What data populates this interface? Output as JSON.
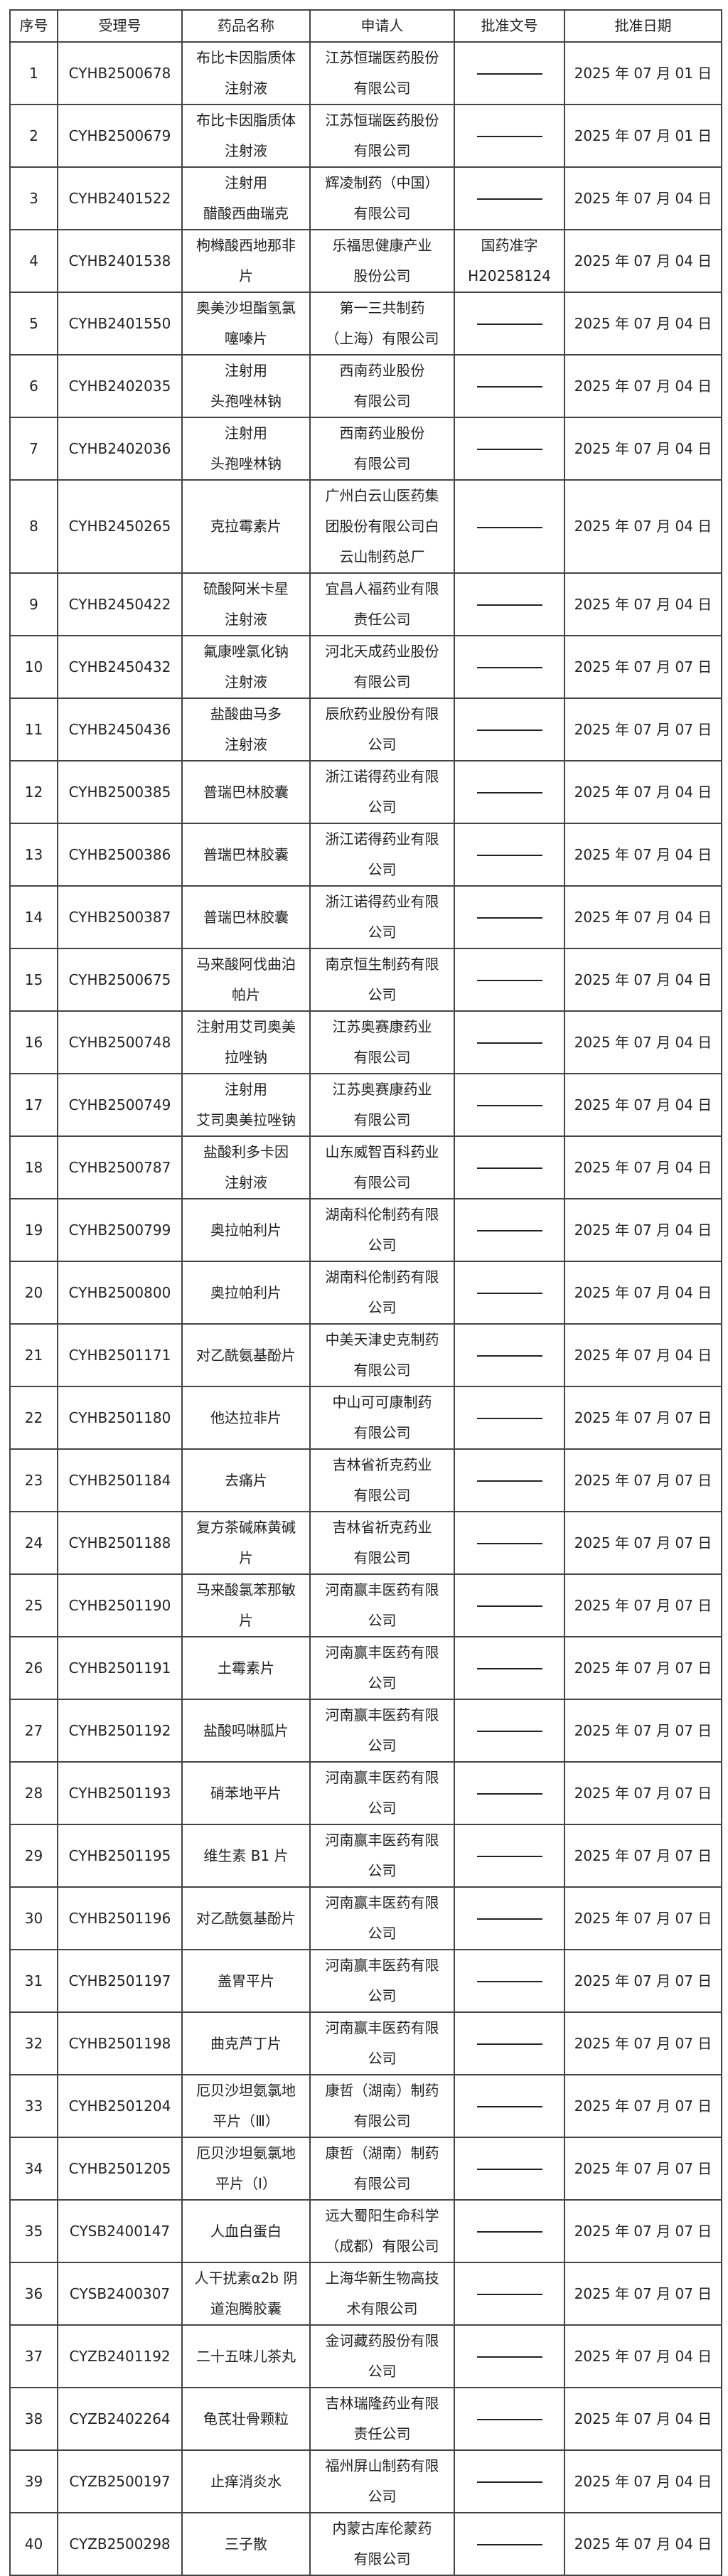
{
  "table": {
    "headers": [
      "序号",
      "受理号",
      "药品名称",
      "申请人",
      "批准文号",
      "批准日期"
    ],
    "rows": [
      {
        "no": "1",
        "id": "CYHB2500678",
        "name": "布比卡因脂质体\n注射液",
        "applicant": "江苏恒瑞医药股份\n有限公司",
        "approval": "",
        "date": "2025 年 07 月 01 日"
      },
      {
        "no": "2",
        "id": "CYHB2500679",
        "name": "布比卡因脂质体\n注射液",
        "applicant": "江苏恒瑞医药股份\n有限公司",
        "approval": "",
        "date": "2025 年 07 月 01 日"
      },
      {
        "no": "3",
        "id": "CYHB2401522",
        "name": "注射用\n醋酸西曲瑞克",
        "applicant": "辉凌制药（中国）\n有限公司",
        "approval": "",
        "date": "2025 年 07 月 04 日"
      },
      {
        "no": "4",
        "id": "CYHB2401538",
        "name": "枸橼酸西地那非\n片",
        "applicant": "乐福思健康产业\n股份公司",
        "approval": "国药准字\nH20258124",
        "date": "2025 年 07 月 04 日"
      },
      {
        "no": "5",
        "id": "CYHB2401550",
        "name": "奥美沙坦酯氢氯\n噻嗪片",
        "applicant": "第一三共制药\n（上海）有限公司",
        "approval": "",
        "date": "2025 年 07 月 04 日"
      },
      {
        "no": "6",
        "id": "CYHB2402035",
        "name": "注射用\n头孢唑林钠",
        "applicant": "西南药业股份\n有限公司",
        "approval": "",
        "date": "2025 年 07 月 04 日"
      },
      {
        "no": "7",
        "id": "CYHB2402036",
        "name": "注射用\n头孢唑林钠",
        "applicant": "西南药业股份\n有限公司",
        "approval": "",
        "date": "2025 年 07 月 04 日"
      },
      {
        "no": "8",
        "id": "CYHB2450265",
        "name": "克拉霉素片",
        "applicant": "广州白云山医药集\n团股份有限公司白\n云山制药总厂",
        "approval": "",
        "date": "2025 年 07 月 04 日"
      },
      {
        "no": "9",
        "id": "CYHB2450422",
        "name": "硫酸阿米卡星\n注射液",
        "applicant": "宜昌人福药业有限\n责任公司",
        "approval": "",
        "date": "2025 年 07 月 04 日"
      },
      {
        "no": "10",
        "id": "CYHB2450432",
        "name": "氟康唑氯化钠\n注射液",
        "applicant": "河北天成药业股份\n有限公司",
        "approval": "",
        "date": "2025 年 07 月 07 日"
      },
      {
        "no": "11",
        "id": "CYHB2450436",
        "name": "盐酸曲马多\n注射液",
        "applicant": "辰欣药业股份有限\n公司",
        "approval": "",
        "date": "2025 年 07 月 07 日"
      },
      {
        "no": "12",
        "id": "CYHB2500385",
        "name": "普瑞巴林胶囊",
        "applicant": "浙江诺得药业有限\n公司",
        "approval": "",
        "date": "2025 年 07 月 04 日"
      },
      {
        "no": "13",
        "id": "CYHB2500386",
        "name": "普瑞巴林胶囊",
        "applicant": "浙江诺得药业有限\n公司",
        "approval": "",
        "date": "2025 年 07 月 04 日"
      },
      {
        "no": "14",
        "id": "CYHB2500387",
        "name": "普瑞巴林胶囊",
        "applicant": "浙江诺得药业有限\n公司",
        "approval": "",
        "date": "2025 年 07 月 04 日"
      },
      {
        "no": "15",
        "id": "CYHB2500675",
        "name": "马来酸阿伐曲泊\n帕片",
        "applicant": "南京恒生制药有限\n公司",
        "approval": "",
        "date": "2025 年 07 月 04 日"
      },
      {
        "no": "16",
        "id": "CYHB2500748",
        "name": "注射用艾司奥美\n拉唑钠",
        "applicant": "江苏奥赛康药业\n有限公司",
        "approval": "",
        "date": "2025 年 07 月 04 日"
      },
      {
        "no": "17",
        "id": "CYHB2500749",
        "name": "注射用\n艾司奥美拉唑钠",
        "applicant": "江苏奥赛康药业\n有限公司",
        "approval": "",
        "date": "2025 年 07 月 04 日"
      },
      {
        "no": "18",
        "id": "CYHB2500787",
        "name": "盐酸利多卡因\n注射液",
        "applicant": "山东威智百科药业\n有限公司",
        "approval": "",
        "date": "2025 年 07 月 04 日"
      },
      {
        "no": "19",
        "id": "CYHB2500799",
        "name": "奥拉帕利片",
        "applicant": "湖南科伦制药有限\n公司",
        "approval": "",
        "date": "2025 年 07 月 04 日"
      },
      {
        "no": "20",
        "id": "CYHB2500800",
        "name": "奥拉帕利片",
        "applicant": "湖南科伦制药有限\n公司",
        "approval": "",
        "date": "2025 年 07 月 04 日"
      },
      {
        "no": "21",
        "id": "CYHB2501171",
        "name": "对乙酰氨基酚片",
        "applicant": "中美天津史克制药\n有限公司",
        "approval": "",
        "date": "2025 年 07 月 04 日"
      },
      {
        "no": "22",
        "id": "CYHB2501180",
        "name": "他达拉非片",
        "applicant": "中山可可康制药\n有限公司",
        "approval": "",
        "date": "2025 年 07 月 07 日"
      },
      {
        "no": "23",
        "id": "CYHB2501184",
        "name": "去痛片",
        "applicant": "吉林省祈克药业\n有限公司",
        "approval": "",
        "date": "2025 年 07 月 07 日"
      },
      {
        "no": "24",
        "id": "CYHB2501188",
        "name": "复方茶碱麻黄碱\n片",
        "applicant": "吉林省祈克药业\n有限公司",
        "approval": "",
        "date": "2025 年 07 月 07 日"
      },
      {
        "no": "25",
        "id": "CYHB2501190",
        "name": "马来酸氯苯那敏\n片",
        "applicant": "河南赢丰医药有限\n公司",
        "approval": "",
        "date": "2025 年 07 月 07 日"
      },
      {
        "no": "26",
        "id": "CYHB2501191",
        "name": "土霉素片",
        "applicant": "河南赢丰医药有限\n公司",
        "approval": "",
        "date": "2025 年 07 月 07 日"
      },
      {
        "no": "27",
        "id": "CYHB2501192",
        "name": "盐酸吗啉胍片",
        "applicant": "河南赢丰医药有限\n公司",
        "approval": "",
        "date": "2025 年 07 月 07 日"
      },
      {
        "no": "28",
        "id": "CYHB2501193",
        "name": "硝苯地平片",
        "applicant": "河南赢丰医药有限\n公司",
        "approval": "",
        "date": "2025 年 07 月 07 日"
      },
      {
        "no": "29",
        "id": "CYHB2501195",
        "name": "维生素 B1 片",
        "applicant": "河南赢丰医药有限\n公司",
        "approval": "",
        "date": "2025 年 07 月 07 日"
      },
      {
        "no": "30",
        "id": "CYHB2501196",
        "name": "对乙酰氨基酚片",
        "applicant": "河南赢丰医药有限\n公司",
        "approval": "",
        "date": "2025 年 07 月 07 日"
      },
      {
        "no": "31",
        "id": "CYHB2501197",
        "name": "盖胃平片",
        "applicant": "河南赢丰医药有限\n公司",
        "approval": "",
        "date": "2025 年 07 月 07 日"
      },
      {
        "no": "32",
        "id": "CYHB2501198",
        "name": "曲克芦丁片",
        "applicant": "河南赢丰医药有限\n公司",
        "approval": "",
        "date": "2025 年 07 月 07 日"
      },
      {
        "no": "33",
        "id": "CYHB2501204",
        "name": "厄贝沙坦氨氯地\n平片（Ⅲ）",
        "applicant": "康哲（湖南）制药\n有限公司",
        "approval": "",
        "date": "2025 年 07 月 07 日"
      },
      {
        "no": "34",
        "id": "CYHB2501205",
        "name": "厄贝沙坦氨氯地\n平片（Ⅰ）",
        "applicant": "康哲（湖南）制药\n有限公司",
        "approval": "",
        "date": "2025 年 07 月 07 日"
      },
      {
        "no": "35",
        "id": "CYSB2400147",
        "name": "人血白蛋白",
        "applicant": "远大蜀阳生命科学\n（成都）有限公司",
        "approval": "",
        "date": "2025 年 07 月 07 日"
      },
      {
        "no": "36",
        "id": "CYSB2400307",
        "name": "人干扰素α2b 阴\n道泡腾胶囊",
        "applicant": "上海华新生物高技\n术有限公司",
        "approval": "",
        "date": "2025 年 07 月 07 日"
      },
      {
        "no": "37",
        "id": "CYZB2401192",
        "name": "二十五味儿茶丸",
        "applicant": "金诃藏药股份有限\n公司",
        "approval": "",
        "date": "2025 年 07 月 04 日"
      },
      {
        "no": "38",
        "id": "CYZB2402264",
        "name": "龟芪壮骨颗粒",
        "applicant": "吉林瑞隆药业有限\n责任公司",
        "approval": "",
        "date": "2025 年 07 月 04 日"
      },
      {
        "no": "39",
        "id": "CYZB2500197",
        "name": "止痒消炎水",
        "applicant": "福州屏山制药有限\n公司",
        "approval": "",
        "date": "2025 年 07 月 04 日"
      },
      {
        "no": "40",
        "id": "CYZB2500298",
        "name": "三子散",
        "applicant": "内蒙古库伦蒙药\n有限公司",
        "approval": "",
        "date": "2025 年 07 月 04 日"
      }
    ]
  }
}
